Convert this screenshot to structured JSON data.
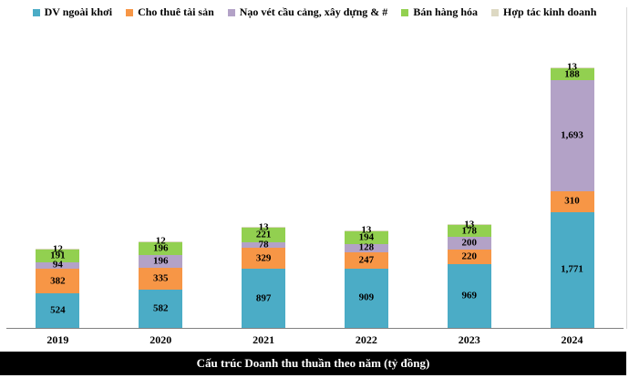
{
  "chart_data": {
    "type": "bar",
    "stacked": true,
    "title": "Cấu trúc Doanh thu thuần theo năm (tỷ đồng)",
    "categories": [
      "2019",
      "2020",
      "2021",
      "2022",
      "2023",
      "2024"
    ],
    "series": [
      {
        "name": "DV ngoài khơi",
        "color": "#4BACC6",
        "values": [
          524,
          582,
          897,
          909,
          969,
          1771
        ]
      },
      {
        "name": "Cho thuê tài sản",
        "color": "#F79646",
        "values": [
          382,
          335,
          329,
          247,
          220,
          310
        ]
      },
      {
        "name": "Nạo vét cầu cảng, xây dựng & #",
        "color": "#B3A2C7",
        "values": [
          94,
          196,
          78,
          128,
          200,
          1693
        ]
      },
      {
        "name": "Bán hàng hóa",
        "color": "#92D050",
        "values": [
          191,
          196,
          221,
          194,
          178,
          188
        ]
      },
      {
        "name": "Hợp tác kinh doanh",
        "color": "#DDD9C3",
        "values": [
          12,
          12,
          13,
          13,
          13,
          13
        ]
      }
    ],
    "totals": [
      1203,
      1321,
      1538,
      1491,
      1580,
      3975
    ],
    "data_labels": true,
    "legend_position": "top",
    "grid": false,
    "ylim": [
      0,
      3975
    ],
    "axis_line_color": "#808080",
    "plot_border_color": "#D9D9D9",
    "label_color": "#000000",
    "title_bar_bg": "#000000",
    "title_color": "#FFFFFF"
  }
}
